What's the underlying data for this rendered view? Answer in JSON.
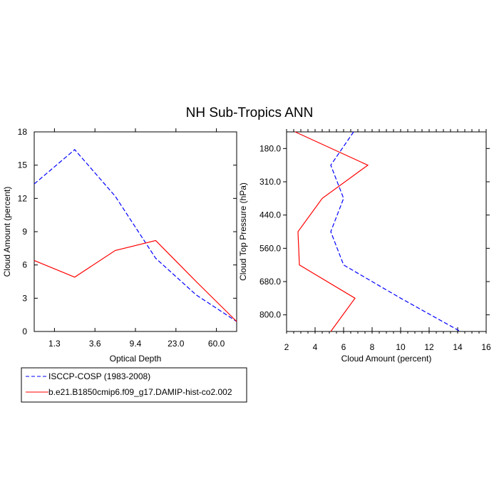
{
  "title": "NH Sub-Tropics ANN",
  "legend": {
    "placement": "bottom-left",
    "entries": [
      {
        "label": "ISCCP-COSP (1983-2008)",
        "color": "#0000ff",
        "dash": "dashed"
      },
      {
        "label": "b.e21.B1850cmip6.f09_g17.DAMIP-hist-co2.002",
        "color": "#ff0000",
        "dash": "solid"
      }
    ]
  },
  "chart_data": [
    {
      "type": "line",
      "xlabel": "Optical Depth",
      "ylabel": "Cloud Amount (percent)",
      "ylim": [
        0,
        18
      ],
      "xlim": [
        0,
        5
      ],
      "x_tick_positions": [
        0.5,
        1.5,
        2.5,
        3.5,
        4.5
      ],
      "x_tick_labels": [
        "1.3",
        "3.6",
        "9.4",
        "23.0",
        "60.0"
      ],
      "y_ticks": [
        0,
        3,
        6,
        9,
        12,
        15,
        18
      ],
      "series": [
        {
          "name": "ISCCP-COSP (1983-2008)",
          "color": "#0000ff",
          "dash": "dashed",
          "x": [
            0,
            1,
            2,
            3,
            4,
            5
          ],
          "y": [
            13.3,
            16.4,
            12.2,
            6.6,
            3.3,
            0.9
          ]
        },
        {
          "name": "b.e21.B1850cmip6.f09_g17.DAMIP-hist-co2.002",
          "color": "#ff0000",
          "dash": "solid",
          "x": [
            0,
            1,
            2,
            3,
            4,
            5
          ],
          "y": [
            6.4,
            4.9,
            7.3,
            8.2,
            4.5,
            0.9
          ]
        }
      ]
    },
    {
      "type": "line",
      "xlabel": "Cloud Amount (percent)",
      "ylabel": "Cloud Top Pressure (hPa)",
      "xlim": [
        2,
        16
      ],
      "ylim": [
        0,
        6
      ],
      "x_ticks": [
        2,
        4,
        6,
        8,
        10,
        12,
        14,
        16
      ],
      "y_tick_positions": [
        5.5,
        4.5,
        3.5,
        2.5,
        1.5,
        0.5
      ],
      "y_tick_labels": [
        "180.0",
        "310.0",
        "440.0",
        "560.0",
        "680.0",
        "800.0"
      ],
      "series": [
        {
          "name": "ISCCP-COSP (1983-2008)",
          "color": "#0000ff",
          "dash": "dashed",
          "x": [
            6.7,
            5.1,
            6.0,
            5.1,
            6.0,
            10.0,
            14.2
          ],
          "y": [
            6,
            5,
            4,
            3,
            2,
            1,
            0
          ]
        },
        {
          "name": "b.e21.B1850cmip6.f09_g17.DAMIP-hist-co2.002",
          "color": "#ff0000",
          "dash": "solid",
          "x": [
            2.6,
            7.7,
            4.5,
            2.8,
            2.9,
            6.8,
            5.1
          ],
          "y": [
            6,
            5,
            4,
            3,
            2,
            1,
            0
          ]
        }
      ]
    }
  ]
}
